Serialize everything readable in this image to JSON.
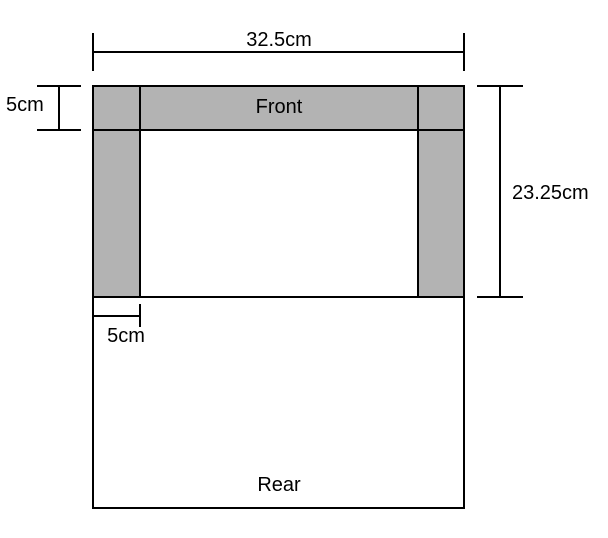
{
  "labels": {
    "top_width": "32.5cm",
    "front_depth": "5cm",
    "side_height": "23.25cm",
    "leg_width": "5cm",
    "front": "Front",
    "rear": "Rear"
  },
  "colors": {
    "stroke": "#000000",
    "frame_fill": "#b3b3b3",
    "background": "#ffffff"
  }
}
